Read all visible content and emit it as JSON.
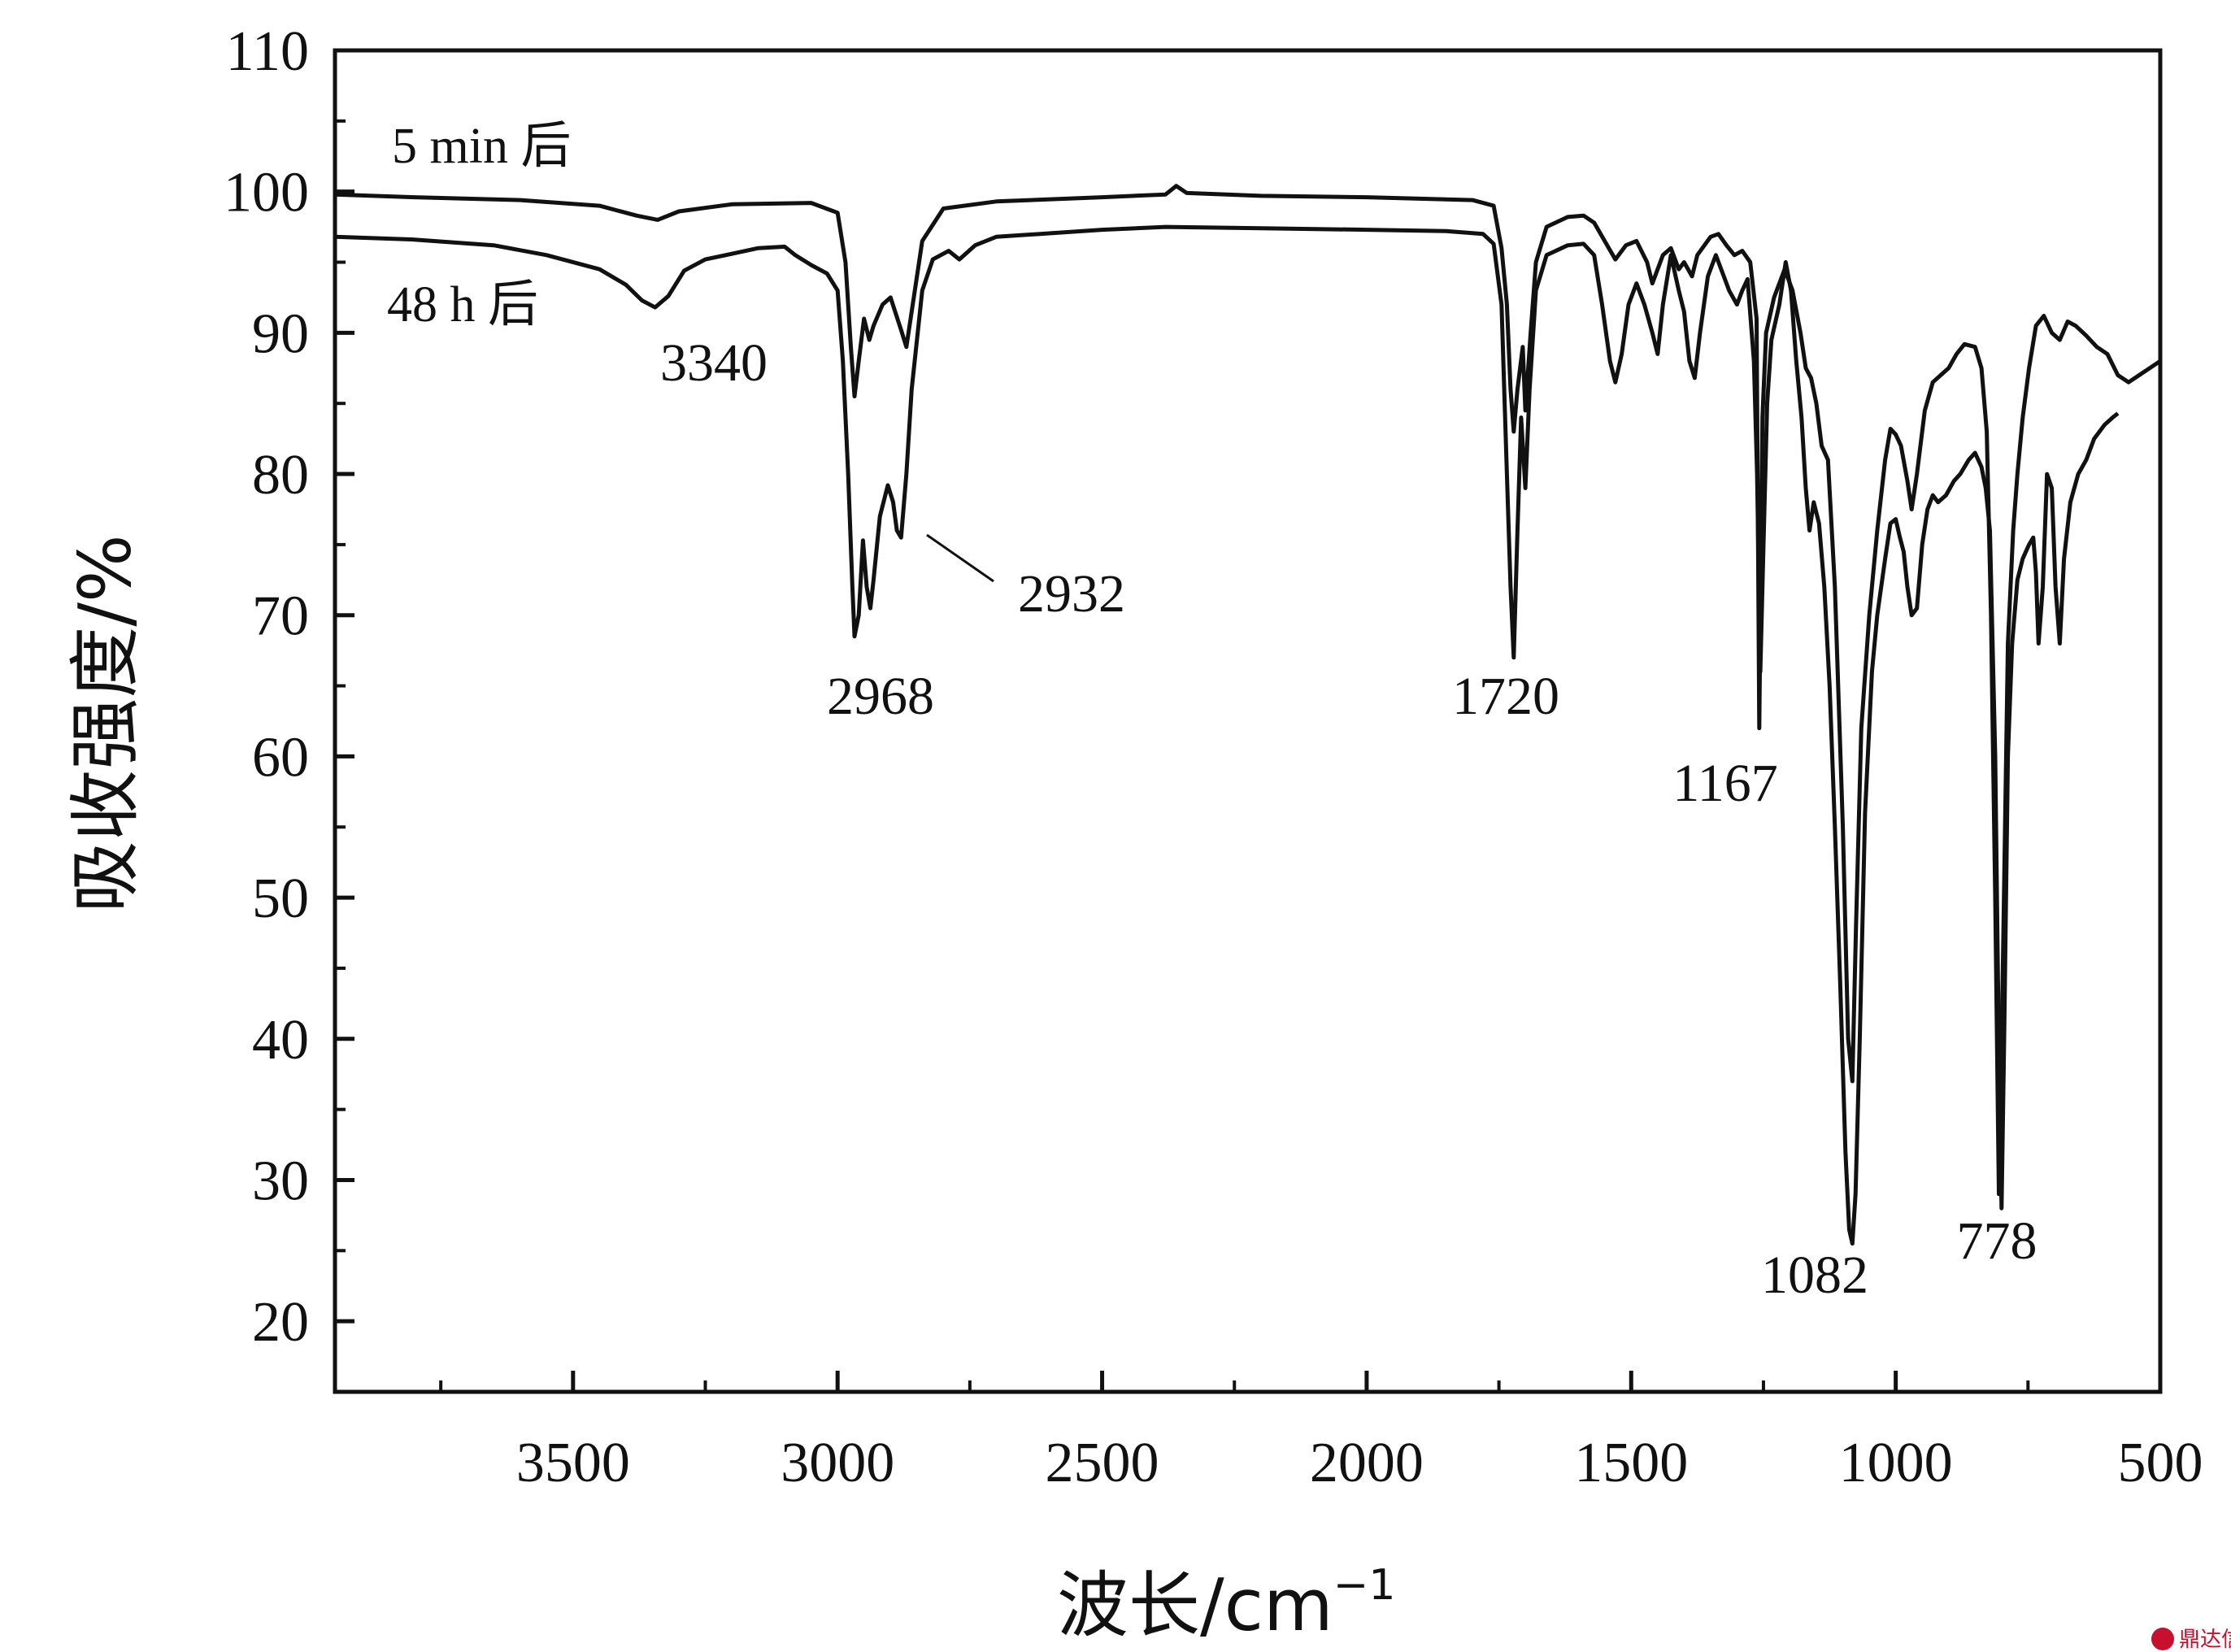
{
  "chart_data": {
    "type": "line",
    "xlabel": "波长/cm",
    "xlabel_sup": "−1",
    "ylabel": "吸收强度/%",
    "xlim": [
      3950,
      500
    ],
    "ylim": [
      15,
      110
    ],
    "xticks": [
      3500,
      3000,
      2500,
      2000,
      1500,
      1000,
      500
    ],
    "yticks": [
      20,
      30,
      40,
      50,
      60,
      70,
      80,
      90,
      100,
      110
    ],
    "grid": false,
    "series": [
      {
        "name": "5 min 后",
        "points": [
          [
            3950,
            99.8
          ],
          [
            3800,
            99.6
          ],
          [
            3600,
            99.4
          ],
          [
            3450,
            99.0
          ],
          [
            3380,
            98.3
          ],
          [
            3340,
            98.0
          ],
          [
            3300,
            98.6
          ],
          [
            3200,
            99.1
          ],
          [
            3050,
            99.2
          ],
          [
            3000,
            98.5
          ],
          [
            2985,
            95.0
          ],
          [
            2975,
            89.0
          ],
          [
            2968,
            85.5
          ],
          [
            2960,
            88.0
          ],
          [
            2950,
            91.0
          ],
          [
            2940,
            89.5
          ],
          [
            2932,
            90.5
          ],
          [
            2915,
            92.0
          ],
          [
            2900,
            92.5
          ],
          [
            2880,
            90.2
          ],
          [
            2870,
            89.0
          ],
          [
            2860,
            91.5
          ],
          [
            2840,
            96.5
          ],
          [
            2800,
            98.8
          ],
          [
            2700,
            99.3
          ],
          [
            2500,
            99.6
          ],
          [
            2380,
            99.8
          ],
          [
            2360,
            100.4
          ],
          [
            2340,
            99.9
          ],
          [
            2200,
            99.7
          ],
          [
            2000,
            99.6
          ],
          [
            1800,
            99.4
          ],
          [
            1760,
            99.0
          ],
          [
            1745,
            96.0
          ],
          [
            1735,
            92.0
          ],
          [
            1728,
            86.0
          ],
          [
            1722,
            83.0
          ],
          [
            1715,
            86.0
          ],
          [
            1705,
            89.0
          ],
          [
            1700,
            84.5
          ],
          [
            1690,
            90.0
          ],
          [
            1680,
            95.0
          ],
          [
            1660,
            97.5
          ],
          [
            1620,
            98.2
          ],
          [
            1590,
            98.3
          ],
          [
            1570,
            97.8
          ],
          [
            1550,
            96.5
          ],
          [
            1530,
            95.2
          ],
          [
            1510,
            96.2
          ],
          [
            1490,
            96.5
          ],
          [
            1470,
            95.0
          ],
          [
            1460,
            93.5
          ],
          [
            1440,
            95.5
          ],
          [
            1425,
            96.0
          ],
          [
            1410,
            94.5
          ],
          [
            1400,
            95.0
          ],
          [
            1385,
            94.0
          ],
          [
            1375,
            95.5
          ],
          [
            1350,
            96.8
          ],
          [
            1335,
            97.0
          ],
          [
            1320,
            96.2
          ],
          [
            1305,
            95.5
          ],
          [
            1290,
            95.8
          ],
          [
            1275,
            95.0
          ],
          [
            1263,
            91.0
          ],
          [
            1258,
            62.0
          ],
          [
            1252,
            84.0
          ],
          [
            1245,
            90.0
          ],
          [
            1230,
            92.5
          ],
          [
            1210,
            94.5
          ],
          [
            1195,
            93.0
          ],
          [
            1180,
            90.0
          ],
          [
            1170,
            87.5
          ],
          [
            1160,
            86.8
          ],
          [
            1150,
            85.0
          ],
          [
            1140,
            82.0
          ],
          [
            1128,
            81.0
          ],
          [
            1115,
            72.0
          ],
          [
            1100,
            55.0
          ],
          [
            1090,
            40.0
          ],
          [
            1082,
            37.0
          ],
          [
            1075,
            48.0
          ],
          [
            1065,
            62.0
          ],
          [
            1050,
            70.0
          ],
          [
            1035,
            76.0
          ],
          [
            1020,
            81.0
          ],
          [
            1010,
            83.2
          ],
          [
            1000,
            82.8
          ],
          [
            990,
            82.0
          ],
          [
            978,
            79.5
          ],
          [
            970,
            77.5
          ],
          [
            960,
            80.0
          ],
          [
            945,
            84.5
          ],
          [
            930,
            86.5
          ],
          [
            915,
            87.0
          ],
          [
            900,
            87.5
          ],
          [
            885,
            88.5
          ],
          [
            870,
            89.2
          ],
          [
            850,
            89.0
          ],
          [
            838,
            87.5
          ],
          [
            828,
            83.0
          ],
          [
            820,
            70.0
          ],
          [
            812,
            50.0
          ],
          [
            805,
            29.0
          ],
          [
            798,
            44.0
          ],
          [
            788,
            68.0
          ],
          [
            778,
            76.0
          ],
          [
            770,
            80.0
          ],
          [
            760,
            84.0
          ],
          [
            748,
            87.5
          ],
          [
            735,
            90.5
          ],
          [
            720,
            91.2
          ],
          [
            705,
            90.0
          ],
          [
            690,
            89.5
          ],
          [
            675,
            90.8
          ],
          [
            660,
            90.5
          ],
          [
            640,
            89.8
          ],
          [
            620,
            89.0
          ],
          [
            600,
            88.5
          ],
          [
            580,
            87.0
          ],
          [
            560,
            86.5
          ],
          [
            540,
            87.0
          ],
          [
            520,
            87.5
          ],
          [
            500,
            88.0
          ]
        ]
      },
      {
        "name": "48 h 后",
        "points": [
          [
            3950,
            96.8
          ],
          [
            3800,
            96.6
          ],
          [
            3650,
            96.2
          ],
          [
            3550,
            95.5
          ],
          [
            3450,
            94.5
          ],
          [
            3400,
            93.4
          ],
          [
            3370,
            92.3
          ],
          [
            3345,
            91.8
          ],
          [
            3320,
            92.6
          ],
          [
            3290,
            94.4
          ],
          [
            3250,
            95.2
          ],
          [
            3150,
            96.0
          ],
          [
            3100,
            96.1
          ],
          [
            3080,
            95.5
          ],
          [
            3050,
            94.8
          ],
          [
            3020,
            94.2
          ],
          [
            3000,
            93.0
          ],
          [
            2990,
            88.0
          ],
          [
            2980,
            80.0
          ],
          [
            2972,
            72.0
          ],
          [
            2968,
            68.5
          ],
          [
            2960,
            70.0
          ],
          [
            2952,
            75.3
          ],
          [
            2945,
            72.0
          ],
          [
            2938,
            70.5
          ],
          [
            2932,
            72.5
          ],
          [
            2920,
            77.0
          ],
          [
            2905,
            79.2
          ],
          [
            2895,
            78.0
          ],
          [
            2888,
            76.0
          ],
          [
            2880,
            75.5
          ],
          [
            2870,
            80.0
          ],
          [
            2860,
            86.0
          ],
          [
            2840,
            93.0
          ],
          [
            2820,
            95.2
          ],
          [
            2790,
            95.8
          ],
          [
            2770,
            95.2
          ],
          [
            2740,
            96.2
          ],
          [
            2700,
            96.8
          ],
          [
            2500,
            97.3
          ],
          [
            2380,
            97.5
          ],
          [
            2200,
            97.4
          ],
          [
            2000,
            97.3
          ],
          [
            1850,
            97.2
          ],
          [
            1780,
            97.0
          ],
          [
            1760,
            96.3
          ],
          [
            1745,
            92.0
          ],
          [
            1735,
            80.0
          ],
          [
            1728,
            72.0
          ],
          [
            1722,
            67.0
          ],
          [
            1715,
            76.0
          ],
          [
            1708,
            84.0
          ],
          [
            1700,
            79.0
          ],
          [
            1692,
            86.0
          ],
          [
            1680,
            93.0
          ],
          [
            1660,
            95.5
          ],
          [
            1620,
            96.2
          ],
          [
            1590,
            96.3
          ],
          [
            1570,
            95.5
          ],
          [
            1555,
            92.0
          ],
          [
            1540,
            88.0
          ],
          [
            1530,
            86.5
          ],
          [
            1518,
            88.5
          ],
          [
            1505,
            92.0
          ],
          [
            1490,
            93.5
          ],
          [
            1475,
            92.0
          ],
          [
            1460,
            90.0
          ],
          [
            1450,
            88.5
          ],
          [
            1440,
            92.0
          ],
          [
            1425,
            95.5
          ],
          [
            1410,
            93.0
          ],
          [
            1400,
            91.5
          ],
          [
            1390,
            88.0
          ],
          [
            1380,
            86.8
          ],
          [
            1370,
            90.0
          ],
          [
            1355,
            94.0
          ],
          [
            1340,
            95.5
          ],
          [
            1325,
            94.0
          ],
          [
            1315,
            93.0
          ],
          [
            1300,
            92.0
          ],
          [
            1290,
            93.0
          ],
          [
            1280,
            93.8
          ],
          [
            1268,
            88.0
          ],
          [
            1262,
            80.0
          ],
          [
            1256,
            66.0
          ],
          [
            1250,
            75.0
          ],
          [
            1243,
            85.0
          ],
          [
            1235,
            89.5
          ],
          [
            1220,
            92.0
          ],
          [
            1208,
            95.0
          ],
          [
            1198,
            93.0
          ],
          [
            1188,
            88.0
          ],
          [
            1178,
            84.0
          ],
          [
            1170,
            79.0
          ],
          [
            1163,
            76.0
          ],
          [
            1155,
            78.0
          ],
          [
            1145,
            76.5
          ],
          [
            1135,
            72.0
          ],
          [
            1125,
            65.0
          ],
          [
            1115,
            55.0
          ],
          [
            1105,
            44.0
          ],
          [
            1095,
            32.0
          ],
          [
            1088,
            26.5
          ],
          [
            1082,
            25.5
          ],
          [
            1076,
            29.0
          ],
          [
            1068,
            40.0
          ],
          [
            1058,
            56.0
          ],
          [
            1045,
            66.0
          ],
          [
            1035,
            70.0
          ],
          [
            1020,
            74.0
          ],
          [
            1010,
            76.5
          ],
          [
            1000,
            76.8
          ],
          [
            992,
            75.5
          ],
          [
            985,
            74.5
          ],
          [
            978,
            72.0
          ],
          [
            970,
            70.0
          ],
          [
            960,
            70.5
          ],
          [
            950,
            75.0
          ],
          [
            940,
            77.5
          ],
          [
            930,
            78.5
          ],
          [
            920,
            78.0
          ],
          [
            905,
            78.5
          ],
          [
            890,
            79.5
          ],
          [
            878,
            80.0
          ],
          [
            862,
            81.0
          ],
          [
            850,
            81.5
          ],
          [
            838,
            80.5
          ],
          [
            830,
            79.0
          ],
          [
            822,
            76.0
          ],
          [
            812,
            60.0
          ],
          [
            805,
            39.0
          ],
          [
            800,
            28.0
          ],
          [
            795,
            40.0
          ],
          [
            788,
            60.0
          ],
          [
            780,
            68.0
          ],
          [
            770,
            72.5
          ],
          [
            760,
            74.0
          ],
          [
            748,
            75.0
          ],
          [
            740,
            75.5
          ],
          [
            735,
            73.0
          ],
          [
            730,
            68.0
          ],
          [
            722,
            72.0
          ],
          [
            714,
            80.0
          ],
          [
            705,
            79.0
          ],
          [
            698,
            72.0
          ],
          [
            690,
            68.0
          ],
          [
            682,
            74.0
          ],
          [
            670,
            78.0
          ],
          [
            655,
            80.0
          ],
          [
            640,
            81.0
          ],
          [
            625,
            82.5
          ],
          [
            605,
            83.5
          ],
          [
            590,
            84.0
          ],
          [
            580,
            84.3
          ]
        ]
      }
    ],
    "annotations": [
      {
        "text": "3340",
        "x": 3340
      },
      {
        "text": "2968",
        "x": 2968
      },
      {
        "text": "2932",
        "x": 2932
      },
      {
        "text": "1720",
        "x": 1720
      },
      {
        "text": "1167",
        "x": 1167
      },
      {
        "text": "1082",
        "x": 1082
      },
      {
        "text": "778",
        "x": 778
      }
    ],
    "watermark": "鼎达信"
  }
}
